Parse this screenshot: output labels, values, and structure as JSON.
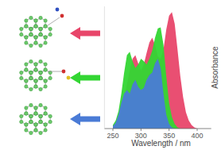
{
  "chart_data": {
    "type": "area",
    "x_label": "Wavelength / nm",
    "y_label": "Absorbance",
    "x": [
      250,
      255,
      260,
      265,
      270,
      275,
      280,
      285,
      290,
      295,
      300,
      305,
      310,
      315,
      320,
      325,
      330,
      335,
      340,
      345,
      350,
      355,
      360,
      365,
      370,
      375,
      380,
      385,
      390,
      395,
      400,
      405,
      410
    ],
    "series": [
      {
        "color": "#e8466a",
        "values": [
          0.02,
          0.04,
          0.08,
          0.14,
          0.25,
          0.38,
          0.5,
          0.6,
          0.63,
          0.56,
          0.5,
          0.55,
          0.65,
          0.74,
          0.78,
          0.72,
          0.62,
          0.6,
          0.68,
          0.85,
          0.97,
          1.0,
          0.9,
          0.68,
          0.45,
          0.27,
          0.14,
          0.07,
          0.03,
          0.01,
          0,
          0,
          0
        ]
      },
      {
        "color": "#33d633",
        "values": [
          0.03,
          0.07,
          0.15,
          0.3,
          0.48,
          0.63,
          0.66,
          0.58,
          0.52,
          0.55,
          0.6,
          0.58,
          0.55,
          0.6,
          0.67,
          0.78,
          0.86,
          0.87,
          0.72,
          0.45,
          0.22,
          0.1,
          0.04,
          0.01,
          0,
          0,
          0,
          0,
          0,
          0,
          0,
          0,
          0
        ]
      },
      {
        "color": "#4a7bd6",
        "values": [
          0.02,
          0.05,
          0.12,
          0.22,
          0.3,
          0.33,
          0.3,
          0.38,
          0.42,
          0.36,
          0.33,
          0.35,
          0.42,
          0.46,
          0.48,
          0.56,
          0.6,
          0.52,
          0.3,
          0.12,
          0.04,
          0.01,
          0,
          0,
          0,
          0,
          0,
          0,
          0,
          0,
          0,
          0,
          0
        ]
      }
    ],
    "xlim": [
      235,
      425
    ],
    "ylim": [
      0,
      1.05
    ],
    "xticks": [
      250,
      300,
      350,
      400
    ],
    "tick_labels": "x"
  }
}
